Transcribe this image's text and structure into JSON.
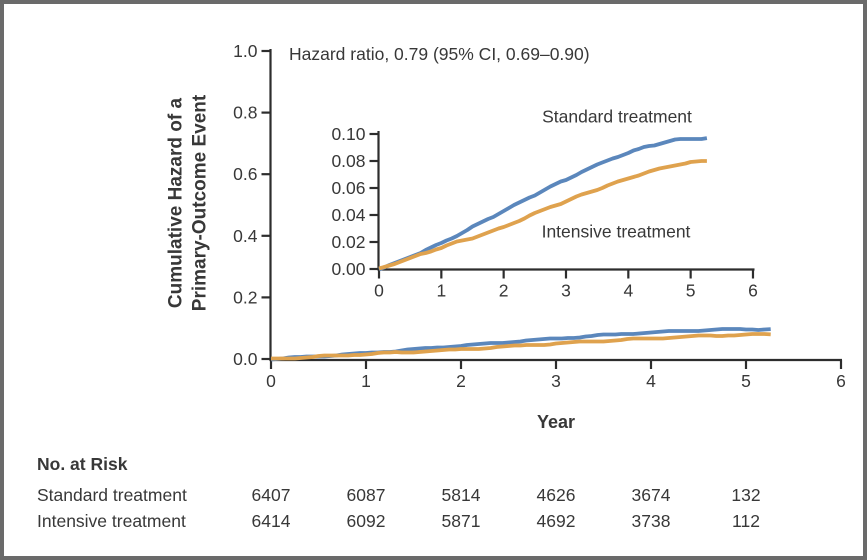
{
  "chart_data": {
    "type": "line",
    "title": "",
    "annotation": "Hazard ratio, 0.79 (95% CI, 0.69–0.90)",
    "xlabel": "Year",
    "ylabel": "Cumulative Hazard of a Primary-Outcome Event",
    "ylabel_line1": "Cumulative Hazard of a",
    "ylabel_line2": "Primary-Outcome Event",
    "main_axis": {
      "xlim": [
        0,
        6
      ],
      "ylim": [
        0,
        1.0
      ],
      "xticks": [
        "0",
        "1",
        "2",
        "3",
        "4",
        "5",
        "6"
      ],
      "yticks": [
        "0.0",
        "0.2",
        "0.4",
        "0.6",
        "0.8",
        "1.0"
      ],
      "grid": false
    },
    "inset_axis": {
      "xlim": [
        0,
        6
      ],
      "ylim": [
        0,
        0.1
      ],
      "xticks": [
        "0",
        "1",
        "2",
        "3",
        "4",
        "5",
        "6"
      ],
      "yticks": [
        "0.00",
        "0.02",
        "0.04",
        "0.06",
        "0.08",
        "0.10"
      ],
      "grid": false
    },
    "series": [
      {
        "name": "Standard treatment",
        "color": "#5b87bc",
        "x": [
          0,
          0.25,
          0.5,
          0.75,
          1,
          1.25,
          1.5,
          1.75,
          2,
          2.25,
          2.5,
          2.75,
          3,
          3.25,
          3.5,
          3.75,
          4,
          4.25,
          4.5,
          4.75,
          5,
          5.26
        ],
        "y": [
          0,
          0.004,
          0.009,
          0.014,
          0.019,
          0.025,
          0.031,
          0.037,
          0.043,
          0.049,
          0.055,
          0.061,
          0.066,
          0.072,
          0.077,
          0.082,
          0.086,
          0.09,
          0.093,
          0.0955,
          0.0965,
          0.097
        ]
      },
      {
        "name": "Intensive treatment",
        "color": "#dfa24e",
        "x": [
          0,
          0.25,
          0.5,
          0.75,
          1,
          1.25,
          1.5,
          1.75,
          2,
          2.25,
          2.5,
          2.75,
          3,
          3.25,
          3.5,
          3.75,
          4,
          4.25,
          4.5,
          4.75,
          5,
          5.26
        ],
        "y": [
          0,
          0.004,
          0.008,
          0.012,
          0.016,
          0.02,
          0.023,
          0.027,
          0.031,
          0.036,
          0.041,
          0.046,
          0.05,
          0.055,
          0.059,
          0.063,
          0.067,
          0.071,
          0.074,
          0.077,
          0.079,
          0.08
        ]
      }
    ]
  },
  "risk_table": {
    "header": "No. at Risk",
    "rows": [
      {
        "label": "Standard treatment",
        "values": [
          "6407",
          "6087",
          "5814",
          "4626",
          "3674",
          "132"
        ]
      },
      {
        "label": "Intensive treatment",
        "values": [
          "6414",
          "6092",
          "5871",
          "4692",
          "3738",
          "112"
        ]
      }
    ]
  },
  "colors": {
    "standard": "#5b87bc",
    "intensive": "#dfa24e",
    "axis": "#2d2d2d",
    "text": "#383838",
    "border": "#6a6a6a"
  }
}
